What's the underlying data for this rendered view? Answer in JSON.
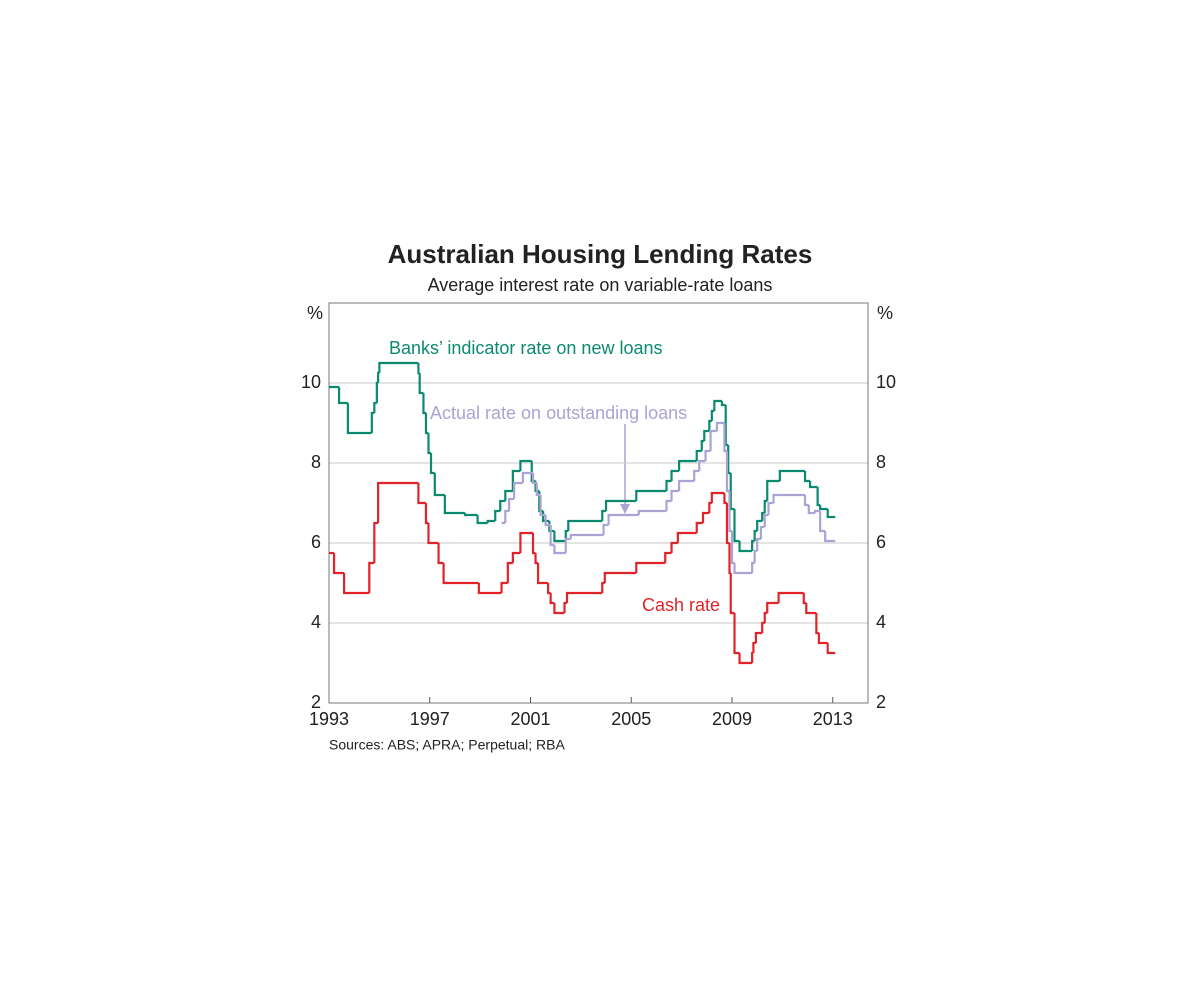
{
  "chart_data": {
    "type": "line",
    "step": true,
    "title": "Australian Housing Lending Rates",
    "subtitle": "Average interest rate on variable-rate loans",
    "y_unit": "%",
    "y2_unit": "%",
    "source": "Sources: ABS; APRA; Perpetual; RBA",
    "xlim": [
      1993,
      2014.4
    ],
    "xticks": [
      1993,
      1997,
      2001,
      2005,
      2009,
      2013
    ],
    "ylim": [
      2,
      12
    ],
    "yticks": [
      2,
      4,
      6,
      8,
      10
    ],
    "y2lim": [
      2,
      12
    ],
    "y2ticks": [
      2,
      4,
      6,
      8,
      10
    ],
    "grid": true,
    "series": [
      {
        "name": "Banks’ indicator rate on new loans",
        "color": "#0b8a6f",
        "x": [
          1993.0,
          1993.4,
          1993.75,
          1994.7,
          1994.8,
          1994.9,
          1994.95,
          1995.0,
          1996.55,
          1996.6,
          1996.75,
          1996.85,
          1996.95,
          1997.05,
          1997.2,
          1997.6,
          1998.4,
          1998.9,
          1999.3,
          1999.6,
          1999.8,
          2000.0,
          2000.3,
          2000.6,
          2001.05,
          2001.2,
          2001.35,
          2001.5,
          2001.75,
          2001.95,
          2002.4,
          2002.5,
          2003.85,
          2004.0,
          2005.2,
          2006.4,
          2006.6,
          2006.9,
          2007.6,
          2007.8,
          2007.9,
          2008.1,
          2008.2,
          2008.3,
          2008.6,
          2008.75,
          2008.85,
          2008.95,
          2009.1,
          2009.3,
          2009.8,
          2009.9,
          2010.0,
          2010.2,
          2010.3,
          2010.4,
          2010.9,
          2011.9,
          2012.1,
          2012.4,
          2012.5,
          2012.8,
          2013.1
        ],
        "values": [
          9.9,
          9.5,
          8.75,
          9.25,
          9.5,
          10.0,
          10.25,
          10.5,
          10.25,
          9.75,
          9.25,
          8.75,
          8.25,
          7.75,
          7.2,
          6.75,
          6.7,
          6.5,
          6.55,
          6.8,
          7.05,
          7.3,
          7.8,
          8.05,
          7.55,
          7.3,
          6.8,
          6.55,
          6.3,
          6.05,
          6.3,
          6.55,
          6.8,
          7.05,
          7.3,
          7.55,
          7.8,
          8.05,
          8.3,
          8.55,
          8.8,
          9.05,
          9.3,
          9.55,
          9.45,
          8.45,
          7.75,
          6.85,
          6.05,
          5.8,
          6.05,
          6.3,
          6.55,
          6.75,
          7.05,
          7.55,
          7.8,
          7.55,
          7.4,
          6.95,
          6.85,
          6.65,
          6.65
        ]
      },
      {
        "name": "Actual rate on outstanding loans",
        "color": "#a9a4d4",
        "x": [
          1999.85,
          2000.0,
          2000.15,
          2000.35,
          2000.7,
          2001.1,
          2001.25,
          2001.4,
          2001.6,
          2001.8,
          2001.95,
          2002.4,
          2002.6,
          2003.9,
          2004.1,
          2005.3,
          2006.4,
          2006.6,
          2006.9,
          2007.5,
          2007.7,
          2007.95,
          2008.15,
          2008.4,
          2008.7,
          2008.8,
          2008.9,
          2009.0,
          2009.1,
          2009.8,
          2009.9,
          2010.0,
          2010.15,
          2010.3,
          2010.45,
          2010.65,
          2011.0,
          2011.9,
          2012.05,
          2012.3,
          2012.5,
          2012.7,
          2013.1
        ],
        "values": [
          6.5,
          6.8,
          7.1,
          7.5,
          7.75,
          7.5,
          7.2,
          6.7,
          6.45,
          5.95,
          5.75,
          6.1,
          6.2,
          6.45,
          6.7,
          6.8,
          7.05,
          7.3,
          7.55,
          7.8,
          8.05,
          8.3,
          8.8,
          9.0,
          8.3,
          7.3,
          6.3,
          5.5,
          5.25,
          5.5,
          5.8,
          6.1,
          6.4,
          6.7,
          7.0,
          7.2,
          7.2,
          6.95,
          6.75,
          6.8,
          6.3,
          6.05,
          6.05
        ]
      },
      {
        "name": "Cash rate",
        "color": "#e2232a",
        "x": [
          1993.0,
          1993.2,
          1993.6,
          1994.6,
          1994.8,
          1994.95,
          1996.55,
          1996.85,
          1996.95,
          1997.35,
          1997.55,
          1998.95,
          1999.85,
          2000.1,
          2000.3,
          2000.6,
          2001.1,
          2001.2,
          2001.3,
          2001.7,
          2001.8,
          2001.95,
          2002.35,
          2002.45,
          2003.85,
          2003.95,
          2005.2,
          2006.35,
          2006.6,
          2006.85,
          2007.6,
          2007.85,
          2008.1,
          2008.2,
          2008.7,
          2008.8,
          2008.9,
          2008.95,
          2009.1,
          2009.3,
          2009.8,
          2009.85,
          2009.95,
          2010.2,
          2010.3,
          2010.4,
          2010.85,
          2011.85,
          2011.95,
          2012.35,
          2012.45,
          2012.8,
          2013.1
        ],
        "values": [
          5.75,
          5.25,
          4.75,
          5.5,
          6.5,
          7.5,
          7.0,
          6.5,
          6.0,
          5.5,
          5.0,
          4.75,
          5.0,
          5.5,
          5.75,
          6.25,
          5.75,
          5.5,
          5.0,
          4.75,
          4.5,
          4.25,
          4.5,
          4.75,
          5.0,
          5.25,
          5.5,
          5.75,
          6.0,
          6.25,
          6.5,
          6.75,
          7.0,
          7.25,
          7.0,
          6.0,
          5.25,
          4.25,
          3.25,
          3.0,
          3.25,
          3.5,
          3.75,
          4.0,
          4.25,
          4.5,
          4.75,
          4.5,
          4.25,
          3.75,
          3.5,
          3.25,
          3.25
        ]
      }
    ]
  }
}
